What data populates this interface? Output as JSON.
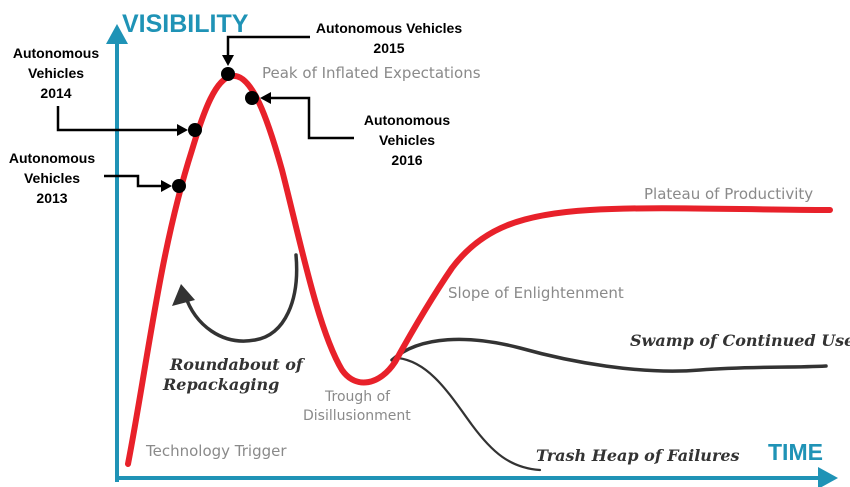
{
  "axes": {
    "y_label": "VISIBILITY",
    "x_label": "TIME",
    "color": "#1f93b6"
  },
  "phases": {
    "technology_trigger": "Technology Trigger",
    "peak": "Peak of Inflated Expectations",
    "trough_line1": "Trough of",
    "trough_line2": "Disillusionment",
    "slope": "Slope of Enlightenment",
    "plateau": "Plateau of Productivity"
  },
  "branches": {
    "roundabout_line1": "Roundabout of",
    "roundabout_line2": "Repackaging",
    "swamp": "Swamp of Continued Use",
    "trash": "Trash Heap of Failures"
  },
  "annotations": [
    {
      "line1": "Autonomous",
      "line2": "Vehicles",
      "year": "2013"
    },
    {
      "line1": "Autonomous",
      "line2": "Vehicles",
      "year": "2014"
    },
    {
      "line1": "Autonomous Vehicles",
      "line2": "",
      "year": "2015"
    },
    {
      "line1": "Autonomous",
      "line2": "Vehicles",
      "year": "2016"
    }
  ],
  "colors": {
    "hype_curve": "#e8212a",
    "branch_curves": "#333333",
    "markers": "#000000"
  }
}
